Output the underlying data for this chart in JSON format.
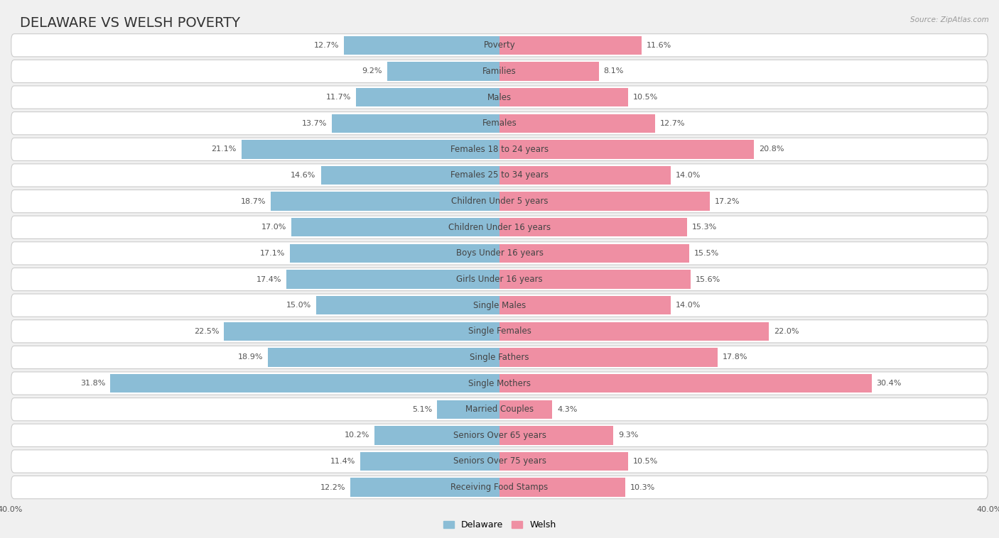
{
  "title": "DELAWARE VS WELSH POVERTY",
  "source": "Source: ZipAtlas.com",
  "categories": [
    "Poverty",
    "Families",
    "Males",
    "Females",
    "Females 18 to 24 years",
    "Females 25 to 34 years",
    "Children Under 5 years",
    "Children Under 16 years",
    "Boys Under 16 years",
    "Girls Under 16 years",
    "Single Males",
    "Single Females",
    "Single Fathers",
    "Single Mothers",
    "Married Couples",
    "Seniors Over 65 years",
    "Seniors Over 75 years",
    "Receiving Food Stamps"
  ],
  "delaware": [
    12.7,
    9.2,
    11.7,
    13.7,
    21.1,
    14.6,
    18.7,
    17.0,
    17.1,
    17.4,
    15.0,
    22.5,
    18.9,
    31.8,
    5.1,
    10.2,
    11.4,
    12.2
  ],
  "welsh": [
    11.6,
    8.1,
    10.5,
    12.7,
    20.8,
    14.0,
    17.2,
    15.3,
    15.5,
    15.6,
    14.0,
    22.0,
    17.8,
    30.4,
    4.3,
    9.3,
    10.5,
    10.3
  ],
  "delaware_color": "#8BBDD6",
  "welsh_color": "#EF8FA3",
  "bar_height": 0.72,
  "xlim": 40,
  "row_bg_color": "#E8E8E8",
  "row_bg_inner": "#F5F5F5",
  "title_fontsize": 14,
  "label_fontsize": 8.5,
  "value_fontsize": 8.0,
  "legend_fontsize": 9
}
